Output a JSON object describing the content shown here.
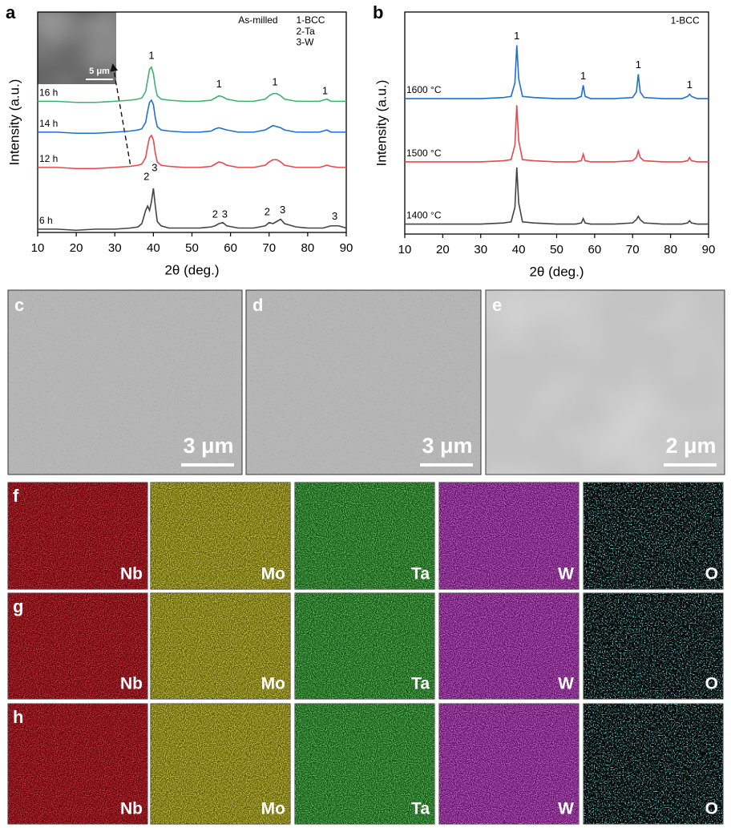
{
  "chart_data": [
    {
      "type": "line",
      "label": "a",
      "xlabel": "2θ (deg.)",
      "ylabel": "Intensity (a.u.)",
      "xlim": [
        10,
        90
      ],
      "ylim": [
        0,
        100
      ],
      "xticks": [
        10,
        20,
        30,
        40,
        50,
        60,
        70,
        80,
        90
      ],
      "x": [
        10,
        15,
        20,
        25,
        30,
        34,
        36,
        37,
        38,
        38.5,
        39,
        39.5,
        40,
        40.5,
        41,
        42,
        44,
        48,
        52,
        55,
        56,
        57,
        58,
        59,
        62,
        66,
        69,
        70,
        71,
        72,
        73,
        74,
        77,
        80,
        83,
        84,
        85,
        86,
        88,
        90
      ],
      "series": [
        {
          "name": "16 h",
          "color": "#3cb371",
          "values": [
            59.5,
            59.5,
            59,
            59,
            59.5,
            60,
            60.5,
            61,
            64,
            69,
            74,
            75,
            72,
            66,
            62,
            60.5,
            60,
            59.5,
            59.5,
            60,
            61,
            62,
            61.5,
            60.5,
            59.5,
            59.5,
            60.5,
            62,
            63,
            63,
            62,
            60.5,
            59.5,
            59.5,
            59.5,
            60,
            60.5,
            59.5,
            59.5,
            59.5
          ]
        },
        {
          "name": "14 h",
          "color": "#1f6fd1",
          "values": [
            45.5,
            45.5,
            45,
            45,
            45.5,
            46,
            46.5,
            47,
            50,
            55,
            59,
            60,
            58,
            52,
            48,
            46.5,
            46,
            45.5,
            45.5,
            46,
            47,
            47.5,
            47,
            46.5,
            45.5,
            45.5,
            46.5,
            47.5,
            48.5,
            48,
            47.5,
            46.5,
            45.5,
            45.5,
            45.5,
            46,
            46.5,
            45.5,
            45.5,
            45.5
          ]
        },
        {
          "name": "12 h",
          "color": "#e8474c",
          "values": [
            29.5,
            29.5,
            29,
            29,
            29.5,
            30,
            30.5,
            31,
            34,
            39,
            43,
            44,
            42,
            36,
            32,
            30.5,
            30,
            29.5,
            29.5,
            30,
            31,
            32,
            31.5,
            30.5,
            29.5,
            29.5,
            30.5,
            32,
            33,
            33,
            32,
            30.5,
            29.5,
            29.5,
            29.5,
            30,
            30.5,
            30,
            29.5,
            29.5
          ]
        },
        {
          "name": "6 h",
          "color": "#444444",
          "values": [
            1.5,
            1.5,
            1,
            1.5,
            1.5,
            2,
            2.5,
            4,
            10,
            12,
            10,
            14,
            20,
            12,
            5,
            3,
            2,
            2,
            2,
            2.5,
            3,
            4,
            4.5,
            3,
            2,
            2,
            3,
            4.5,
            4,
            5,
            6,
            4,
            2.5,
            2,
            2,
            2,
            2.5,
            3,
            3,
            2
          ]
        }
      ],
      "labels": [
        {
          "text": "As-milled",
          "x": 62,
          "y": 96
        },
        {
          "text": "1-BCC",
          "x": 77,
          "y": 96
        },
        {
          "text": "2-Ta",
          "x": 77,
          "y": 91
        },
        {
          "text": "3-W",
          "x": 77,
          "y": 86
        }
      ],
      "peak_labels": [
        {
          "text": "1",
          "x": 39.5,
          "y": 80
        },
        {
          "text": "1",
          "x": 57,
          "y": 67
        },
        {
          "text": "1",
          "x": 71.5,
          "y": 68
        },
        {
          "text": "1",
          "x": 84.5,
          "y": 64
        },
        {
          "text": "2",
          "x": 38.2,
          "y": 25
        },
        {
          "text": "3",
          "x": 40.3,
          "y": 29
        },
        {
          "text": "2",
          "x": 56,
          "y": 8
        },
        {
          "text": "3",
          "x": 58.5,
          "y": 8
        },
        {
          "text": "2",
          "x": 69.5,
          "y": 9
        },
        {
          "text": "3",
          "x": 73.5,
          "y": 10
        },
        {
          "text": "3",
          "x": 87,
          "y": 7
        }
      ],
      "inset_scale_bar": "5 μm"
    },
    {
      "type": "line",
      "label": "b",
      "xlabel": "2θ (deg.)",
      "ylabel": "Intensity (a.u.)",
      "xlim": [
        10,
        90
      ],
      "ylim": [
        0,
        100
      ],
      "xticks": [
        10,
        20,
        30,
        40,
        50,
        60,
        70,
        80,
        90
      ],
      "x": [
        10,
        20,
        30,
        36,
        38,
        39,
        39.5,
        40,
        41,
        44,
        50,
        55,
        56.5,
        57,
        57.5,
        59,
        65,
        70,
        71,
        71.5,
        72,
        73,
        78,
        83,
        84.5,
        85,
        85.5,
        87,
        90
      ],
      "series": [
        {
          "name": "1600 °C",
          "color": "#1f6fd1",
          "values": [
            61,
            61,
            61,
            61.5,
            62,
            68,
            85,
            70,
            62,
            61.5,
            61,
            61,
            62,
            67,
            62,
            61,
            61,
            61.5,
            64,
            72,
            64,
            61.5,
            61,
            61,
            62,
            63,
            62,
            61,
            61
          ]
        },
        {
          "name": "1500 °C",
          "color": "#e8474c",
          "values": [
            32.5,
            32.5,
            32.5,
            33,
            33.5,
            40,
            58,
            42,
            33.5,
            33,
            32.5,
            32.5,
            33,
            36,
            33,
            32.5,
            32.5,
            33,
            34.5,
            37.5,
            34.5,
            33,
            32.5,
            32.5,
            33,
            34.5,
            33,
            32.5,
            32.5
          ]
        },
        {
          "name": "1400 °C",
          "color": "#444444",
          "values": [
            4.5,
            4.5,
            4.5,
            5,
            5.5,
            12,
            30,
            14,
            5.5,
            5,
            4.5,
            4.5,
            5,
            7,
            5,
            4.5,
            4.5,
            5,
            6.5,
            8,
            6.5,
            5,
            4.5,
            4.5,
            5,
            6,
            5,
            4.5,
            4.5
          ]
        }
      ],
      "labels": [
        {
          "text": "1-BCC",
          "x": 80,
          "y": 96
        }
      ],
      "peak_labels": [
        {
          "text": "1",
          "x": 39.5,
          "y": 89
        },
        {
          "text": "1",
          "x": 57,
          "y": 71
        },
        {
          "text": "1",
          "x": 71.5,
          "y": 76
        },
        {
          "text": "1",
          "x": 85,
          "y": 67
        }
      ]
    }
  ],
  "panels": [
    {
      "label": "c",
      "scale_bar": "3 μm"
    },
    {
      "label": "d",
      "scale_bar": "3 μm"
    },
    {
      "label": "e",
      "scale_bar": "2 μm"
    }
  ],
  "maps": [
    {
      "label": "f",
      "elements": [
        "Nb",
        "Mo",
        "Ta",
        "W",
        "O"
      ]
    },
    {
      "label": "g",
      "elements": [
        "Nb",
        "Mo",
        "Ta",
        "W",
        "O"
      ]
    },
    {
      "label": "h",
      "elements": [
        "Nb",
        "Mo",
        "Ta",
        "W",
        "O"
      ]
    }
  ]
}
